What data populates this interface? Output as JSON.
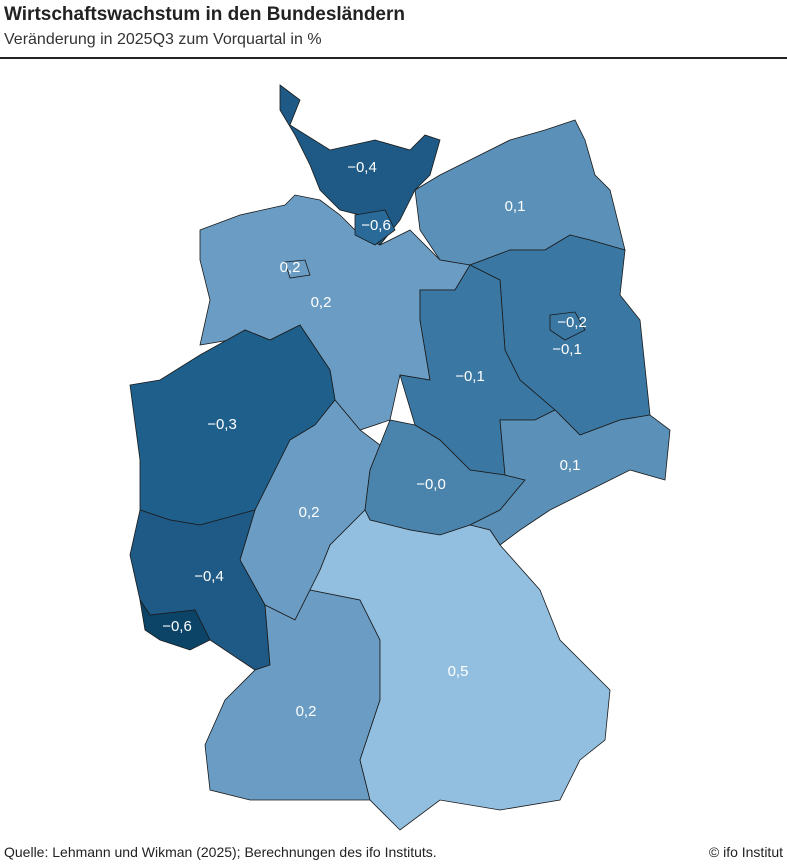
{
  "title": "Wirtschaftswachstum in den Bundesländern",
  "subtitle": "Veränderung in 2025Q3 zum Vorquartal in %",
  "regions": [
    {
      "value": -0.4,
      "label": "−0,4",
      "color": "#1e5a85"
    },
    {
      "value": 0.1,
      "label": "0,1",
      "color": "#5b91b9"
    },
    {
      "value": 0.2,
      "label": "0,2",
      "color": "#6b9dc4"
    },
    {
      "value": -0.3,
      "label": "−0,3",
      "color": "#1f5f8b"
    },
    {
      "value": 0.2,
      "label": "0,2",
      "color": "#6b9dc4"
    },
    {
      "value": -0.1,
      "label": "−0,1",
      "color": "#3a78a3"
    },
    {
      "value": -0.1,
      "label": "−0,1",
      "color": "#3a78a3"
    },
    {
      "value": 0,
      "label": "−0,0",
      "color": "#4a84ad"
    },
    {
      "value": 0.1,
      "label": "0,1",
      "color": "#5b91b9"
    },
    {
      "value": -0.4,
      "label": "−0,4",
      "color": "#1e5a85"
    },
    {
      "value": 0.2,
      "label": "0,2",
      "color": "#6b9dc4"
    },
    {
      "value": 0.5,
      "label": "0,5",
      "color": "#92bfe0"
    },
    {
      "value": -0.6,
      "label": "−0,6",
      "color": "#0b4466"
    },
    {
      "value": -0.6,
      "label": "−0,6",
      "color": "#2a6a99"
    },
    {
      "value": 0.2,
      "label": "0,2",
      "color": "#6b9dc4"
    },
    {
      "value": -0.2,
      "label": "−0,2",
      "color": "#3a78a3"
    }
  ],
  "source": "Quelle: Lehmann und Wikman (2025); Berechnungen des ifo Instituts.",
  "credit": "© ifo Institut"
}
